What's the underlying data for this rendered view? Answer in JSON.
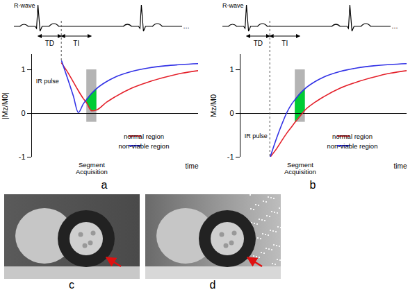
{
  "chart_data": [
    {
      "type": "line",
      "caption": "a",
      "ylabel": "|Mz/M0|",
      "xlabel": "time",
      "x": [
        1.8,
        2.2,
        2.5,
        2.8,
        3.1,
        3.3,
        3.6,
        3.9,
        4.5,
        5,
        6,
        7,
        8,
        9,
        10
      ],
      "series": [
        {
          "name": "normal region",
          "color": "#e4202a",
          "values": [
            1.15,
            0.92,
            0.72,
            0.52,
            0.34,
            0.24,
            0.06,
            0.08,
            0.26,
            0.38,
            0.58,
            0.72,
            0.83,
            0.92,
            0.98
          ]
        },
        {
          "name": "non-viable region",
          "color": "#3232e6",
          "values": [
            1.2,
            0.75,
            0.4,
            0.02,
            0.22,
            0.32,
            0.46,
            0.57,
            0.73,
            0.83,
            0.96,
            1.04,
            1.09,
            1.12,
            1.14
          ]
        }
      ],
      "xlim": [
        0,
        10
      ],
      "ylim": [
        -1,
        1.35
      ],
      "yticks": [
        -1,
        0,
        1
      ],
      "tick_labels": "y",
      "legend": "bottom-right",
      "ecg": {
        "label": "R-wave",
        "r_waves": [
          0.4,
          6.6
        ],
        "continuation": "..."
      },
      "annotations": {
        "td": {
          "label": "TD",
          "from": 0.4,
          "to": 1.8
        },
        "ti": {
          "label": "TI",
          "from": 1.8,
          "to": 3.6
        },
        "ir_pulse": {
          "label": "IR pulse",
          "x": 1.8
        },
        "acquisition": {
          "label": "Segment Acquisition",
          "x": [
            3.3,
            3.9
          ],
          "y": [
            -0.2,
            1.0
          ]
        }
      }
    },
    {
      "type": "line",
      "caption": "b",
      "ylabel": "Mz/M0",
      "xlabel": "time",
      "x": [
        1.8,
        2.2,
        2.5,
        2.8,
        3.1,
        3.3,
        3.6,
        3.9,
        4.5,
        5,
        6,
        7,
        8,
        9,
        10
      ],
      "series": [
        {
          "name": "normal region",
          "color": "#e4202a",
          "values": [
            -1.0,
            -0.8,
            -0.62,
            -0.45,
            -0.3,
            -0.2,
            -0.06,
            0.08,
            0.26,
            0.38,
            0.58,
            0.72,
            0.83,
            0.92,
            0.98
          ]
        },
        {
          "name": "non-viable region",
          "color": "#3232e6",
          "values": [
            -1.0,
            -0.55,
            -0.25,
            0.02,
            0.22,
            0.32,
            0.46,
            0.57,
            0.73,
            0.83,
            0.96,
            1.04,
            1.09,
            1.12,
            1.14
          ]
        }
      ],
      "xlim": [
        0,
        10
      ],
      "ylim": [
        -1,
        1.35
      ],
      "yticks": [
        -1,
        0,
        1
      ],
      "tick_labels": "y",
      "legend": "bottom-right",
      "ecg": {
        "label": "R-wave",
        "r_waves": [
          0.4,
          6.6
        ],
        "continuation": "..."
      },
      "annotations": {
        "td": {
          "label": "TD",
          "from": 0.4,
          "to": 1.8
        },
        "ti": {
          "label": "TI",
          "from": 1.8,
          "to": 3.6
        },
        "ir_pulse": {
          "label": "IR pulse",
          "x": 1.8
        },
        "acquisition": {
          "label": "Segment Acquisition",
          "x": [
            3.3,
            3.9
          ],
          "y": [
            -0.2,
            1.0
          ]
        }
      }
    }
  ],
  "images": [
    {
      "caption": "c"
    },
    {
      "caption": "d"
    }
  ]
}
